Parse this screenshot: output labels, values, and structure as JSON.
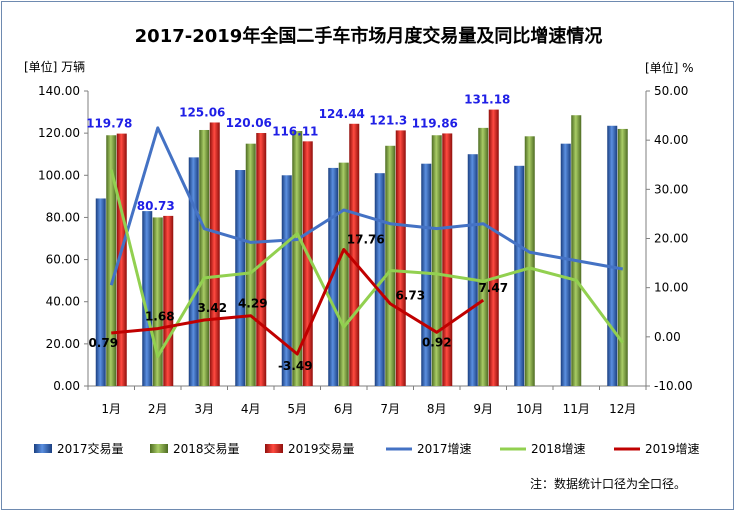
{
  "chart_data": {
    "type": "bar",
    "title": "2017-2019年全国二手车市场月度交易量及同比增速情况",
    "ylabel": "[单位] 万辆",
    "y2label": "[单位] %",
    "ylim": [
      0,
      140
    ],
    "y2lim": [
      -10,
      50
    ],
    "yticks": [
      "0.00",
      "20.00",
      "40.00",
      "60.00",
      "80.00",
      "100.00",
      "120.00",
      "140.00"
    ],
    "y2ticks": [
      "-10.00",
      "0.00",
      "10.00",
      "20.00",
      "30.00",
      "40.00",
      "50.00"
    ],
    "categories": [
      "1月",
      "2月",
      "3月",
      "4月",
      "5月",
      "6月",
      "7月",
      "8月",
      "9月",
      "10月",
      "11月",
      "12月"
    ],
    "bar_series": [
      {
        "name": "2017交易量",
        "color": "#2e63b8",
        "values": [
          89,
          83,
          108.5,
          102.5,
          100,
          103.5,
          101,
          105.5,
          110,
          104.5,
          115,
          123.5
        ]
      },
      {
        "name": "2018交易量",
        "color": "#7aa33a",
        "values": [
          119,
          80,
          121.5,
          115,
          121,
          106,
          114,
          119,
          122.5,
          118.5,
          128.5,
          122
        ]
      },
      {
        "name": "2019交易量",
        "color": "#e0201c",
        "values": [
          119.78,
          80.73,
          125.06,
          120.06,
          116.11,
          124.44,
          121.3,
          119.86,
          131.18
        ]
      }
    ],
    "bar_labels": [
      "119.78",
      "80.73",
      "125.06",
      "120.06",
      "116.11",
      "124.44",
      "121.3",
      "119.86",
      "131.18"
    ],
    "line_series": [
      {
        "name": "2017增速",
        "color": "#4472c4",
        "values": [
          10.5,
          42.5,
          22,
          19.2,
          19.8,
          25.8,
          23,
          22,
          23,
          17.2,
          15.5,
          13.8
        ]
      },
      {
        "name": "2018增速",
        "color": "#92d050",
        "values": [
          34,
          -4,
          12,
          13,
          21,
          2,
          13.5,
          12.8,
          11.3,
          14,
          11.5,
          -1.2
        ]
      },
      {
        "name": "2019增速",
        "color": "#c00000",
        "values": [
          0.79,
          1.68,
          3.42,
          4.29,
          -3.49,
          17.76,
          6.73,
          0.92,
          7.47
        ]
      }
    ],
    "line_labels": [
      "0.79",
      "1.68",
      "3.42",
      "4.29",
      "-3.49",
      "17.76",
      "6.73",
      "0.92",
      "7.47"
    ],
    "legend_position": "bottom",
    "grid": false
  },
  "note": "注：数据统计口径为全口径。"
}
